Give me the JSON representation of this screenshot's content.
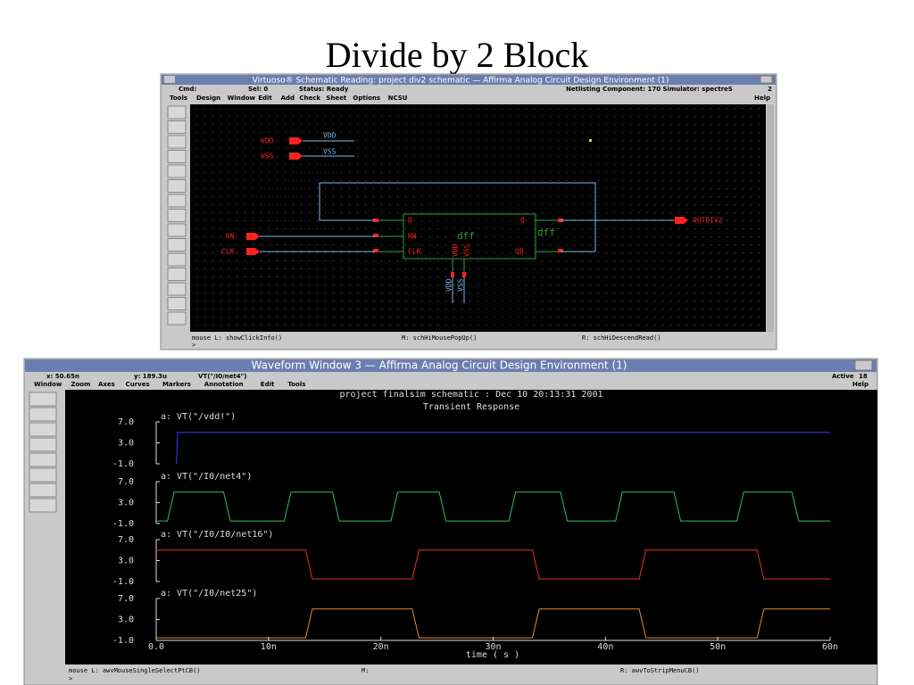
{
  "slide_title": "Divide by 2 Block",
  "schematic_window": {
    "title": "Virtuoso® Schematic Reading: project div2 schematic — Affirma Analog Circuit Design Environment (1)",
    "status": [
      "Cmd:",
      "Sel: 0",
      "Status: Ready",
      "Netlisting Component: 170  Simulator: spectreS",
      "2"
    ],
    "menu": [
      "Tools",
      "Design",
      "Window",
      "Edit",
      "Add",
      "Check",
      "Sheet",
      "Options",
      "NCSU"
    ],
    "help": "Help",
    "pins": [
      "VDD",
      "VSS",
      "RN",
      "CLK",
      "OUTDIV2"
    ],
    "wires": [
      "VDD",
      "VSS"
    ],
    "instance": {
      "ports": [
        "D",
        "RN",
        "CLK",
        "Q",
        "QB",
        "VDD",
        "VSS"
      ],
      "cell": "dff",
      "name": "dff"
    },
    "mouse": [
      "mouse L: showClickInfo()",
      "M: schHiMousePopUp()",
      "R: schHiDescendRead()"
    ]
  },
  "waveform_window": {
    "title": "Waveform Window 3 — Affirma Analog Circuit Design Environment (1)",
    "status": [
      "x: 50.65n",
      "y: 189.3u",
      "VT(\"/I0/net4\")",
      "Active",
      "18"
    ],
    "menu": [
      "Window",
      "Zoom",
      "Axes",
      "Curves",
      "Markers",
      "Annotation",
      "Edit",
      "Tools"
    ],
    "help": "Help",
    "mouse": [
      "mouse L: awvMouseSingleSelectPtCB()",
      "M:",
      "R: awvToStripMenuCB()"
    ],
    "chart": {
      "type": "line",
      "subtitle": "project finalsim schematic : Dec 10 20:13:31 2001",
      "title": "Transient Response",
      "xlabel": "time ( s )",
      "xlim": [
        0,
        60
      ],
      "xticks": [
        {
          "value": 0,
          "label": "0.0"
        },
        {
          "value": 10,
          "label": "10n"
        },
        {
          "value": 20,
          "label": "20n"
        },
        {
          "value": 30,
          "label": "30n"
        },
        {
          "value": 40,
          "label": "40n"
        },
        {
          "value": 50,
          "label": "50n"
        },
        {
          "value": 60,
          "label": "60n"
        }
      ],
      "ylim": [
        -1,
        7
      ],
      "yticks": [
        {
          "value": 7,
          "label": "7.0"
        },
        {
          "value": 3,
          "label": "3.0"
        },
        {
          "value": -1,
          "label": "-1.0"
        }
      ],
      "series": [
        {
          "name": "a: VT(\"/vdd!\")",
          "color": "#3b3bff",
          "x": [
            1.8,
            1.9,
            60
          ],
          "values": [
            -1,
            5,
            5
          ]
        },
        {
          "name": "a: VT(\"/I0/net4\")",
          "color": "#2fc05a",
          "x": [
            0,
            1.0,
            1.6,
            6.0,
            6.6,
            11.4,
            12.0,
            15.7,
            16.3,
            20.9,
            21.5,
            25.2,
            25.8,
            31.4,
            32.0,
            36.0,
            36.6,
            40.9,
            41.5,
            46.1,
            46.7,
            51.7,
            52.3,
            56.6,
            57.2,
            60
          ],
          "values": [
            -0.5,
            -0.5,
            5,
            5,
            -0.5,
            -0.5,
            5,
            5,
            -0.5,
            -0.5,
            5,
            5,
            -0.5,
            -0.5,
            5,
            5,
            -0.5,
            -0.5,
            5,
            5,
            -0.5,
            -0.5,
            5,
            5,
            -0.5,
            -0.5
          ]
        },
        {
          "name": "a: VT(\"/I0/I0/net16\")",
          "color": "#e2302a",
          "x": [
            0,
            13.3,
            13.9,
            22.8,
            23.4,
            33.5,
            34.1,
            43.0,
            43.6,
            53.5,
            54.1,
            60
          ],
          "values": [
            5,
            5,
            -0.5,
            -0.5,
            5,
            5,
            -0.5,
            -0.5,
            5,
            5,
            -0.5,
            -0.5
          ]
        },
        {
          "name": "a: VT(\"/I0/net25\")",
          "color": "#e88a2a",
          "x": [
            0,
            13.3,
            13.9,
            22.8,
            23.4,
            33.5,
            34.1,
            43.0,
            43.6,
            53.5,
            54.1,
            60
          ],
          "values": [
            -0.5,
            -0.5,
            5,
            5,
            -0.5,
            -0.5,
            5,
            5,
            -0.5,
            -0.5,
            5,
            5
          ]
        }
      ]
    }
  }
}
